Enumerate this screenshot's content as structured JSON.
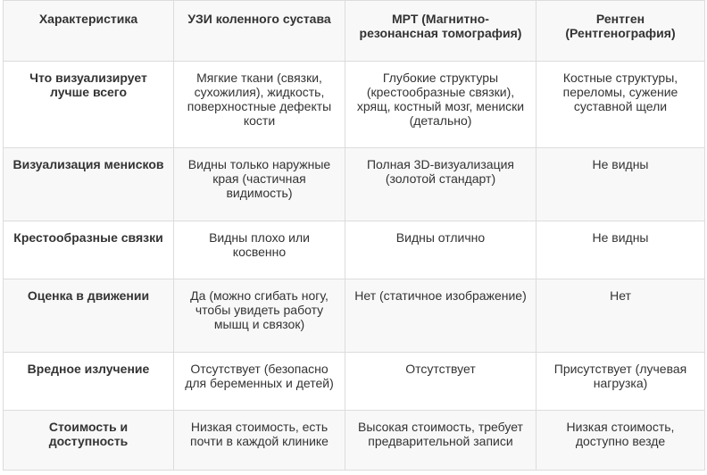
{
  "table": {
    "headers": [
      "Характеристика",
      "УЗИ коленного сустава",
      "МРТ (Магнитно-резонансная томография)",
      "Рентген (Рентгенография)"
    ],
    "rows": [
      {
        "label": "Что визуализирует лучше всего",
        "cells": [
          "Мягкие ткани (связки, сухожилия), жидкость, поверхностные дефекты кости",
          "Глубокие структуры (крестообразные связки), хрящ, костный мозг, мениски (детально)",
          "Костные структуры, переломы, сужение суставной щели"
        ]
      },
      {
        "label": "Визуализация менисков",
        "cells": [
          "Видны только наружные края (частичная видимость)",
          "Полная 3D-визуализация (золотой стандарт)",
          "Не видны"
        ]
      },
      {
        "label": "Крестообразные связки",
        "cells": [
          "Видны плохо или косвенно",
          "Видны отлично",
          "Не видны"
        ]
      },
      {
        "label": "Оценка в движении",
        "cells": [
          "Да (можно сгибать ногу, чтобы увидеть работу мышц и связок)",
          "Нет (статичное изображение)",
          "Нет"
        ]
      },
      {
        "label": "Вредное излучение",
        "cells": [
          "Отсутствует (безопасно для беременных и детей)",
          "Отсутствует",
          "Присутствует (лучевая нагрузка)"
        ]
      },
      {
        "label": "Стоимость и доступность",
        "cells": [
          "Низкая стоимость, есть почти в каждой клинике",
          "Высокая стоимость, требует предварительной записи",
          "Низкая стоимость, доступно везде"
        ]
      }
    ]
  }
}
